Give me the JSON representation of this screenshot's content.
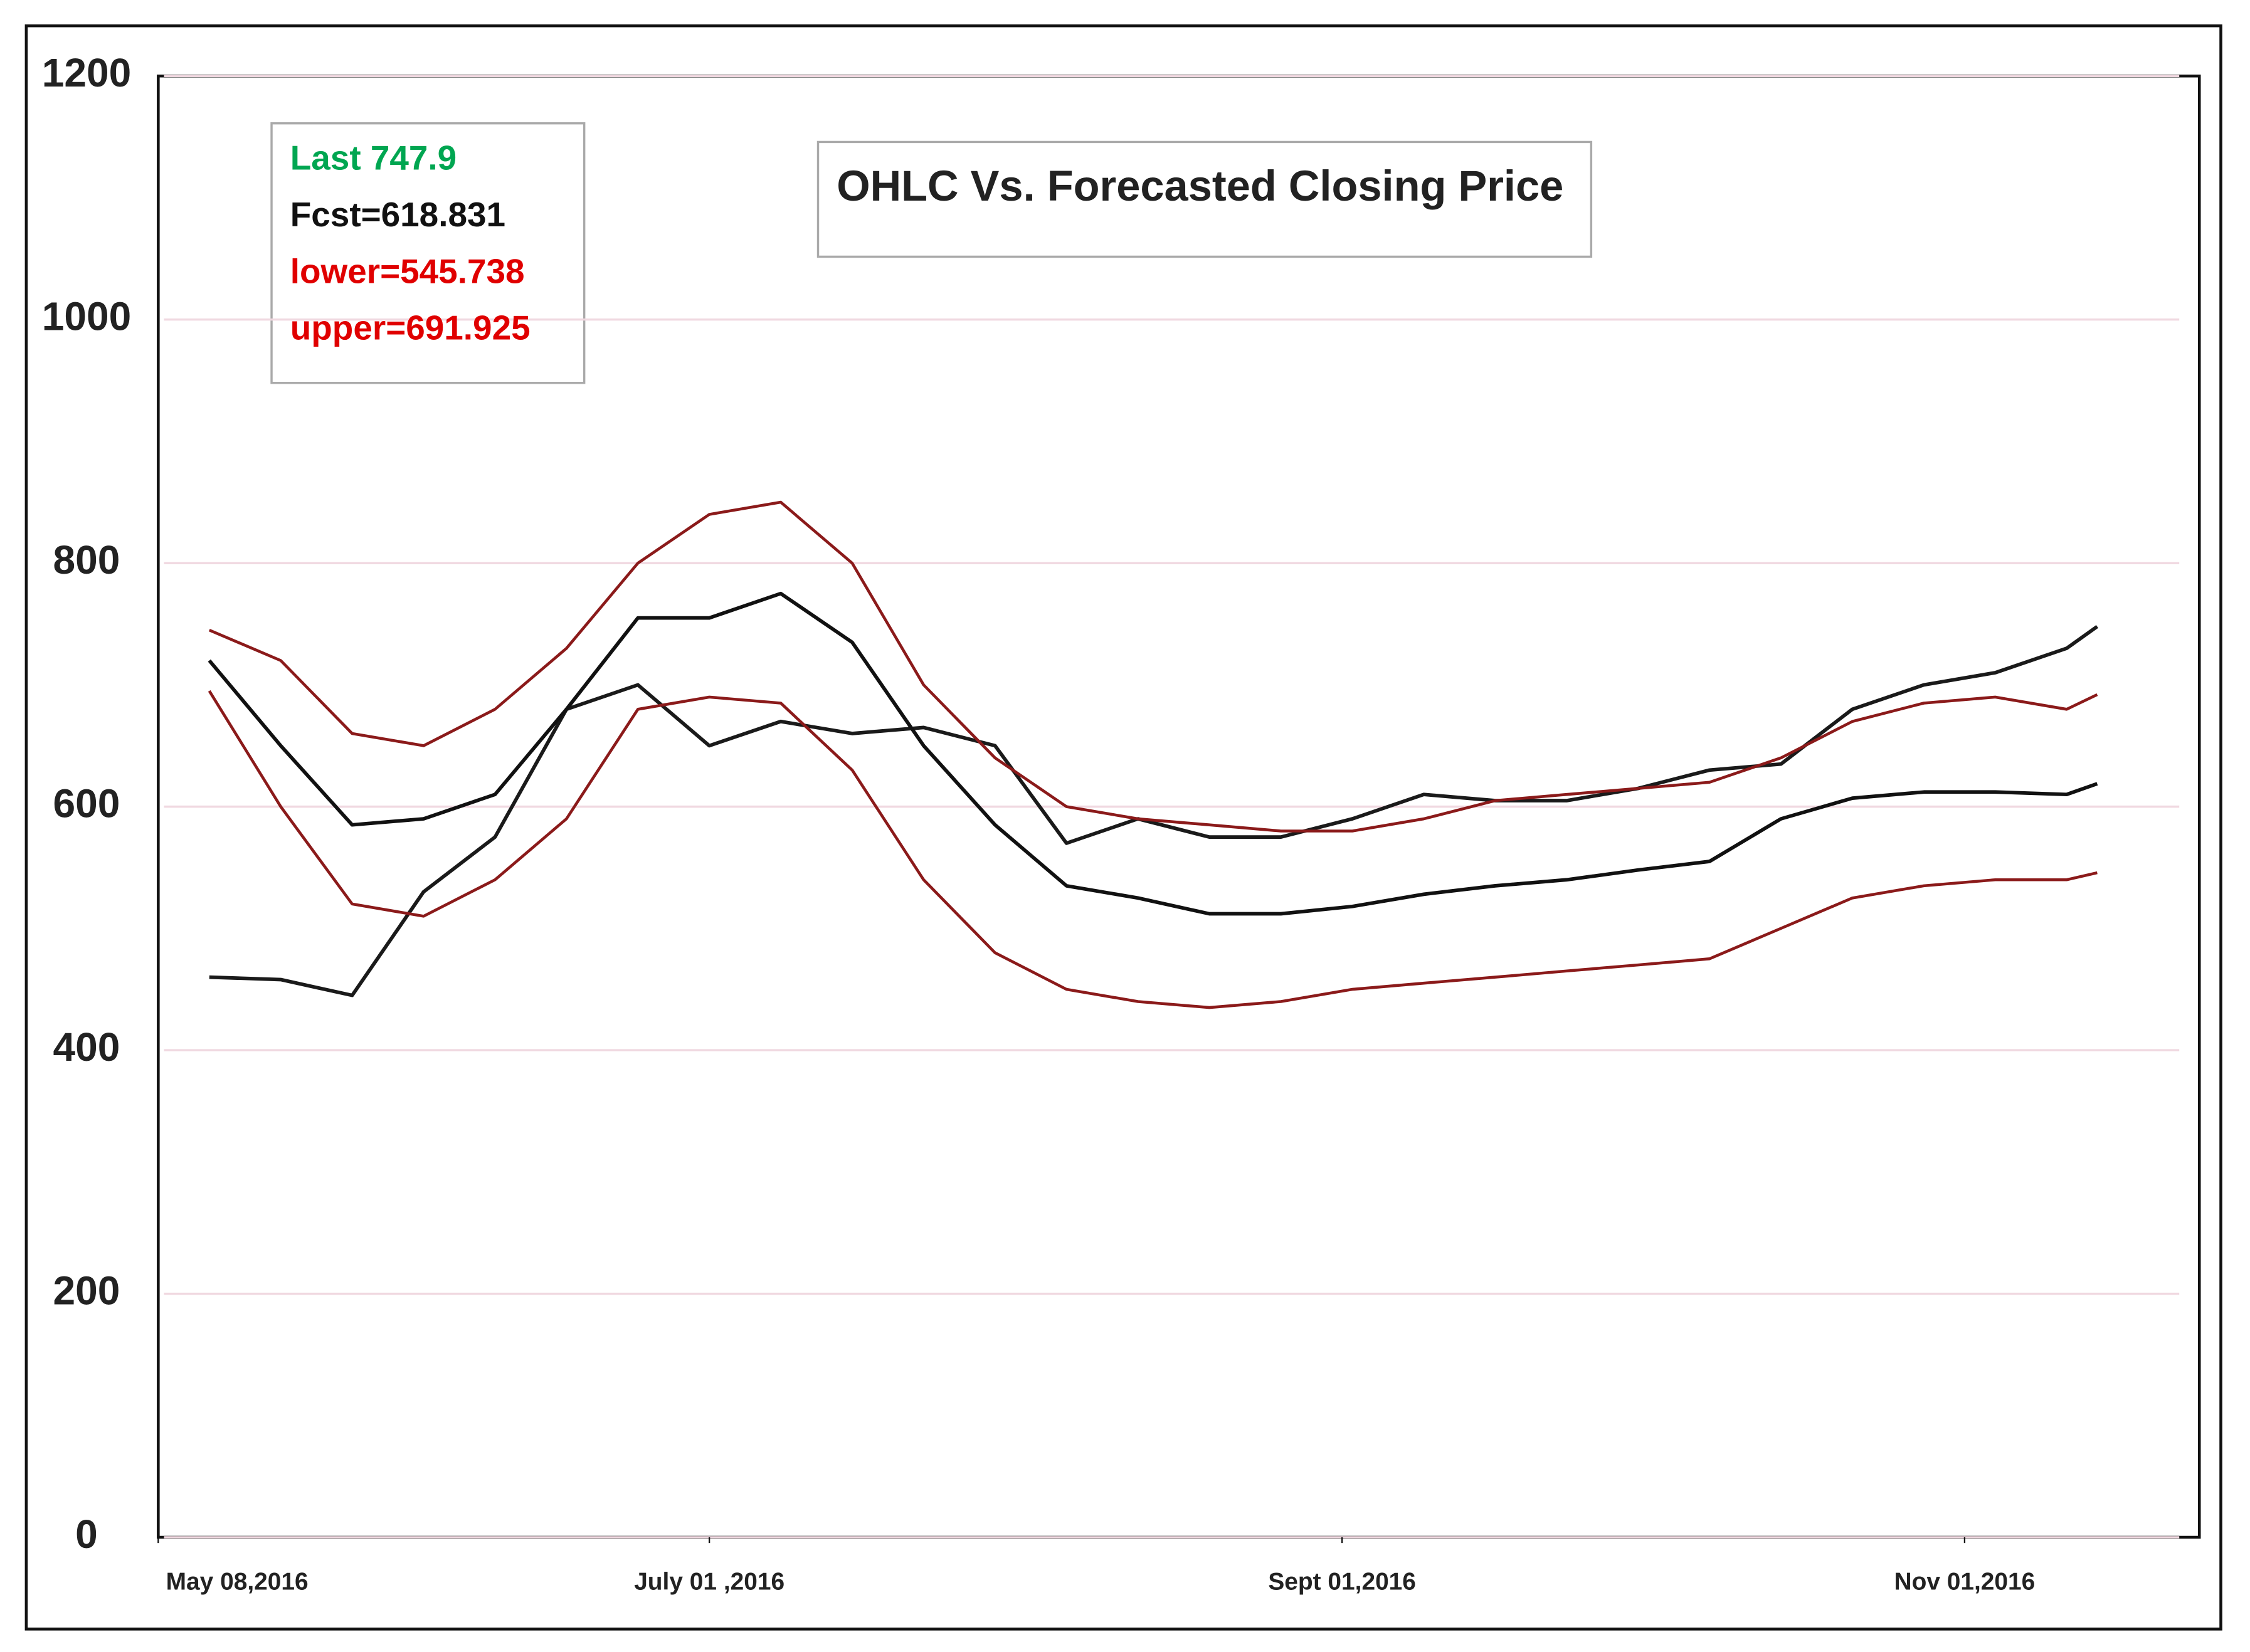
{
  "chart_data": {
    "type": "line",
    "title": "OHLC Vs. Forecasted Closing Price",
    "annotations": [
      {
        "text": "Last 747.9",
        "color": "#00a651"
      },
      {
        "text": "Fcst=618.831",
        "color": "#111111"
      },
      {
        "text": "lower=545.738",
        "color": "#e00000"
      },
      {
        "text": "upper=691.925",
        "color": "#e00000"
      }
    ],
    "x": [
      "2016-05-13",
      "2016-05-20",
      "2016-05-27",
      "2016-06-03",
      "2016-06-10",
      "2016-06-17",
      "2016-06-24",
      "2016-07-01",
      "2016-07-08",
      "2016-07-15",
      "2016-07-22",
      "2016-07-29",
      "2016-08-05",
      "2016-08-12",
      "2016-08-19",
      "2016-08-26",
      "2016-09-02",
      "2016-09-09",
      "2016-09-16",
      "2016-09-23",
      "2016-09-30",
      "2016-10-07",
      "2016-10-14",
      "2016-10-21",
      "2016-10-28",
      "2016-11-04",
      "2016-11-11",
      "2016-11-14"
    ],
    "series": [
      {
        "name": "Close",
        "color": "#1a1a1a",
        "width": 2.5,
        "values": [
          460,
          458,
          445,
          530,
          575,
          680,
          700,
          650,
          670,
          660,
          665,
          650,
          570,
          590,
          575,
          575,
          590,
          610,
          605,
          605,
          615,
          630,
          635,
          680,
          700,
          710,
          730,
          747.9
        ]
      },
      {
        "name": "Fcst",
        "color": "#111111",
        "width": 2.5,
        "values": [
          720,
          650,
          585,
          590,
          610,
          680,
          755,
          755,
          775,
          735,
          650,
          585,
          535,
          525,
          512,
          512,
          518,
          528,
          535,
          540,
          548,
          555,
          590,
          607,
          612,
          612,
          610,
          618.831
        ]
      },
      {
        "name": "upper",
        "color": "#8b1a1a",
        "width": 2,
        "values": [
          745,
          720,
          660,
          650,
          680,
          730,
          800,
          840,
          850,
          800,
          700,
          640,
          600,
          590,
          585,
          580,
          580,
          590,
          605,
          610,
          615,
          620,
          640,
          670,
          685,
          690,
          680,
          691.925
        ]
      },
      {
        "name": "lower",
        "color": "#8b1a1a",
        "width": 2,
        "values": [
          695,
          600,
          520,
          510,
          540,
          590,
          680,
          690,
          685,
          630,
          540,
          480,
          450,
          440,
          435,
          440,
          450,
          455,
          460,
          465,
          470,
          475,
          500,
          525,
          535,
          540,
          540,
          545.738
        ]
      }
    ],
    "xlim": [
      "2016-05-08",
      "2016-11-24"
    ],
    "xticks": [
      {
        "value": "2016-05-08",
        "label": "May 08,2016"
      },
      {
        "value": "2016-07-01",
        "label": "July 01 ,2016"
      },
      {
        "value": "2016-09-01",
        "label": "Sept 01,2016"
      },
      {
        "value": "2016-11-01",
        "label": "Nov  01,2016"
      }
    ],
    "ylim": [
      0,
      1200
    ],
    "yticks": [
      0,
      200,
      400,
      600,
      800,
      1000,
      1200
    ],
    "grid": true
  }
}
